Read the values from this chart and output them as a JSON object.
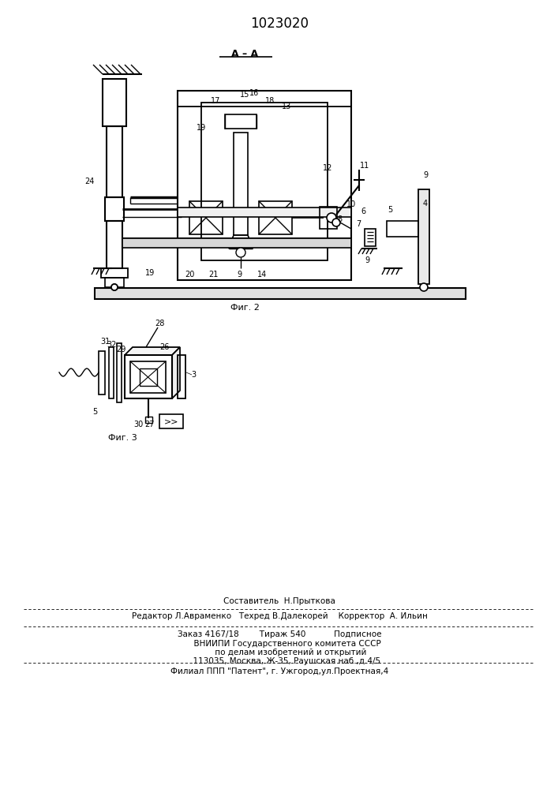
{
  "title": "1023020",
  "bg_color": "#ffffff",
  "bottom_line1": "Составитель  Н.Прыткова",
  "bottom_line2": "Редактор Л.Авраменко   Техред В.Далекорей    Корректор  А. Ильин",
  "bottom_line3": "Заказ 4167/18        Тираж 540           Подписное",
  "bottom_line4": "      ВНИИПИ Государственного комитета СССР",
  "bottom_line5": "         по делам изобретений и открытий",
  "bottom_line6": "      113035, Москва, Ж-35, Раушская наб.,д.4/5",
  "bottom_line7": "Филиал ППП \"Патент\", г. Ужгород,ул.Проектная,4"
}
